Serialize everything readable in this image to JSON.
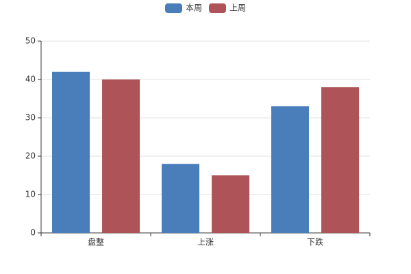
{
  "chart_data": {
    "type": "bar",
    "categories": [
      "盘整",
      "上涨",
      "下跌"
    ],
    "series": [
      {
        "name": "本周",
        "color": "#4a7ebb",
        "values": [
          42,
          18,
          33
        ]
      },
      {
        "name": "上周",
        "color": "#ae5458",
        "values": [
          40,
          15,
          38
        ]
      }
    ],
    "ylim": [
      0,
      50
    ],
    "yticks": [
      0,
      10,
      20,
      30,
      40,
      50
    ],
    "grid": true,
    "legend": "top"
  }
}
